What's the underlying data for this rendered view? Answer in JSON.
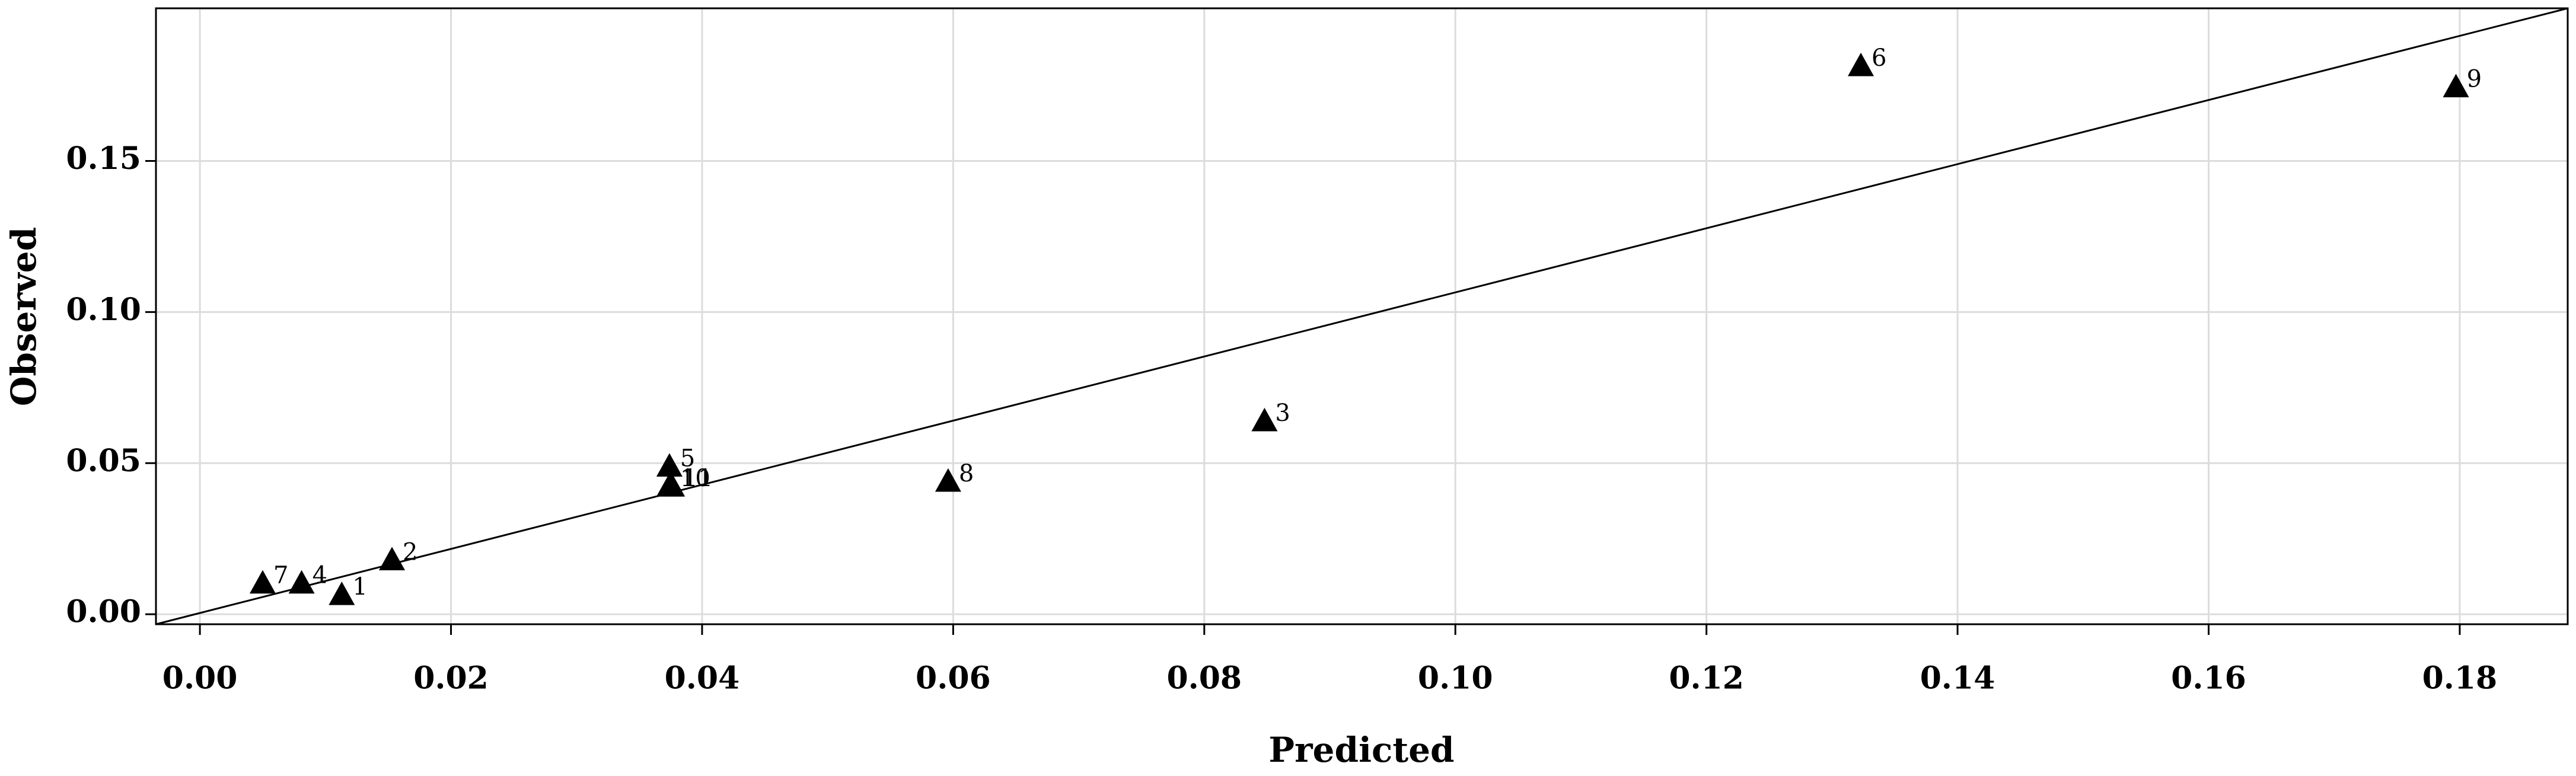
{
  "chart_data": {
    "type": "scatter",
    "x_label": "Predicted",
    "y_label": "Observed",
    "labels": [
      "1",
      "2",
      "3",
      "4",
      "5",
      "6",
      "7",
      "8",
      "9",
      "10",
      "11"
    ],
    "x": [
      0.0113,
      0.0153,
      0.0848,
      0.0081,
      0.0374,
      0.1323,
      0.005,
      0.0596,
      0.1797,
      0.0374,
      0.0376
    ],
    "values": [
      0.0065,
      0.018,
      0.064,
      0.0103,
      0.049,
      0.1815,
      0.0103,
      0.044,
      0.1745,
      0.0424,
      0.0424
    ],
    "color": "#000000",
    "xlim": [
      -0.0035,
      0.1886
    ],
    "ylim": [
      -0.0033,
      0.2005
    ],
    "xticks": [
      {
        "value": 0,
        "label": "0.00"
      },
      {
        "value": 0.02,
        "label": "0.02"
      },
      {
        "value": 0.04,
        "label": "0.04"
      },
      {
        "value": 0.06,
        "label": "0.06"
      },
      {
        "value": 0.08,
        "label": "0.08"
      },
      {
        "value": 0.1,
        "label": "0.10"
      },
      {
        "value": 0.12,
        "label": "0.12"
      },
      {
        "value": 0.14,
        "label": "0.14"
      },
      {
        "value": 0.16,
        "label": "0.16"
      },
      {
        "value": 0.18,
        "label": "0.18"
      }
    ],
    "yticks": [
      {
        "value": 0,
        "label": "0.00"
      },
      {
        "value": 0.05,
        "label": "0.05"
      },
      {
        "value": 0.1,
        "label": "0.10"
      },
      {
        "value": 0.15,
        "label": "0.15"
      }
    ],
    "grid": true
  }
}
